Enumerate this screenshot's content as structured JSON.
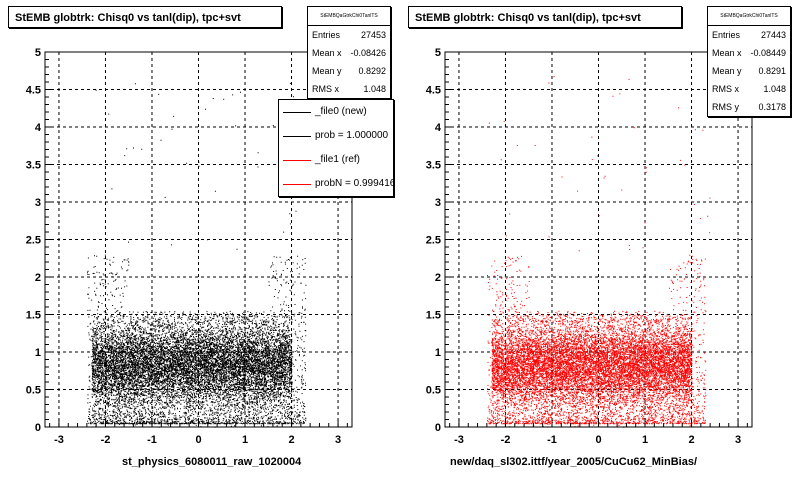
{
  "pads": [
    {
      "title": "StEMB globtrk: Chisq0 vs tanl(dip), tpc+svt",
      "stats": {
        "header": "StEMBQaGtrkChi0TanlTS",
        "rows": [
          {
            "label": "Entries",
            "value": "27453"
          },
          {
            "label": "Mean x",
            "value": "-0.08426"
          },
          {
            "label": "Mean y",
            "value": "0.8292"
          },
          {
            "label": "RMS x",
            "value": "1.048"
          }
        ]
      },
      "legend": [
        {
          "label": "_file0 (new)",
          "color": "#000000"
        },
        {
          "label": "prob = 1.000000",
          "color": "#000000"
        },
        {
          "label": "_file1 (ref)",
          "color": "#ff0000"
        },
        {
          "label": "probN = 0.999416",
          "color": "#ff0000"
        }
      ],
      "xtitle": "st_physics_6080011_raw_1020004",
      "marker_color": "#000000"
    },
    {
      "title": "StEMB globtrk: Chisq0 vs tanl(dip), tpc+svt",
      "stats": {
        "header": "StEMBQaGtrkChi0TanlTS",
        "rows": [
          {
            "label": "Entries",
            "value": "27443"
          },
          {
            "label": "Mean x",
            "value": "-0.08449"
          },
          {
            "label": "Mean y",
            "value": "0.8291"
          },
          {
            "label": "RMS x",
            "value": "1.048"
          },
          {
            "label": "RMS y",
            "value": "0.3178"
          }
        ]
      },
      "xtitle": "new/daq_sl302.ittf/year_2005/CuCu62_MinBias/",
      "marker_color": "#ff0000"
    }
  ],
  "chart_data": [
    {
      "type": "scatter",
      "title": "StEMB globtrk: Chisq0 vs tanl(dip), tpc+svt",
      "xlabel": "st_physics_6080011_raw_1020004",
      "ylabel": "",
      "xlim": [
        -3.3,
        3.3
      ],
      "ylim": [
        0,
        5
      ],
      "xticks": [
        -3,
        -2,
        -1,
        0,
        1,
        2,
        3
      ],
      "yticks": [
        0,
        0.5,
        1,
        1.5,
        2,
        2.5,
        3,
        3.5,
        4,
        4.5,
        5
      ],
      "grid": true,
      "entries": 27453,
      "mean_x": -0.08426,
      "mean_y": 0.8292,
      "rms_x": 1.048,
      "color": "#000000",
      "density_regions": [
        {
          "x": [
            -2.3,
            2.0
          ],
          "y": [
            0.3,
            1.5
          ],
          "level": "dense"
        },
        {
          "x": [
            -2.4,
            2.3
          ],
          "y": [
            0.05,
            2.3
          ],
          "level": "sparse"
        }
      ]
    },
    {
      "type": "scatter",
      "title": "StEMB globtrk: Chisq0 vs tanl(dip), tpc+svt",
      "xlabel": "new/daq_sl302.ittf/year_2005/CuCu62_MinBias/",
      "ylabel": "",
      "xlim": [
        -3.3,
        3.3
      ],
      "ylim": [
        0,
        5
      ],
      "xticks": [
        -3,
        -2,
        -1,
        0,
        1,
        2,
        3
      ],
      "yticks": [
        0,
        0.5,
        1,
        1.5,
        2,
        2.5,
        3,
        3.5,
        4,
        4.5,
        5
      ],
      "grid": true,
      "entries": 27443,
      "mean_x": -0.08449,
      "mean_y": 0.8291,
      "rms_x": 1.048,
      "rms_y": 0.3178,
      "color": "#ff0000",
      "density_regions": [
        {
          "x": [
            -2.3,
            2.0
          ],
          "y": [
            0.3,
            1.5
          ],
          "level": "dense"
        },
        {
          "x": [
            -2.4,
            2.3
          ],
          "y": [
            0.05,
            2.3
          ],
          "level": "sparse"
        }
      ]
    }
  ]
}
